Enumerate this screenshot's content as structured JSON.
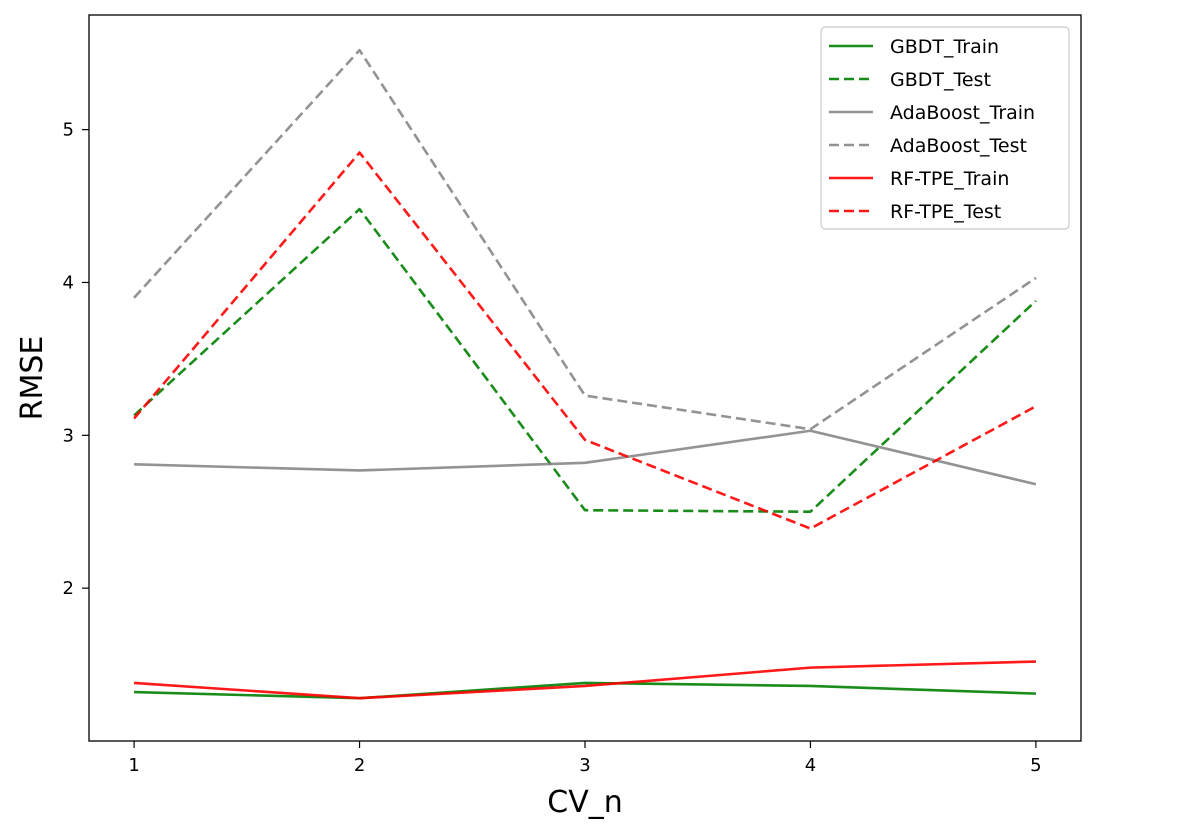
{
  "chart_data": {
    "type": "line",
    "title": "",
    "xlabel": "CV_n",
    "ylabel": "RMSE",
    "x": [
      1,
      2,
      3,
      4,
      5
    ],
    "xticks": [
      "1",
      "2",
      "3",
      "4",
      "5"
    ],
    "yticks": [
      "2",
      "3",
      "4",
      "5"
    ],
    "ylim": [
      1.0,
      5.75
    ],
    "xlim": [
      0.8,
      5.2
    ],
    "grid": false,
    "legend_position": "top-right",
    "series": [
      {
        "name": "GBDT_Train",
        "color": "#008000",
        "dash": "solid",
        "values": [
          1.32,
          1.28,
          1.38,
          1.36,
          1.31
        ]
      },
      {
        "name": "GBDT_Test",
        "color": "#008000",
        "dash": "dashed",
        "values": [
          3.13,
          4.48,
          2.51,
          2.5,
          3.88
        ]
      },
      {
        "name": "AdaBoost_Train",
        "color": "#808080",
        "dash": "solid",
        "values": [
          2.81,
          2.77,
          2.82,
          3.03,
          2.68
        ]
      },
      {
        "name": "AdaBoost_Test",
        "color": "#808080",
        "dash": "dashed",
        "values": [
          3.9,
          5.52,
          3.26,
          3.04,
          4.03
        ]
      },
      {
        "name": "RF-TPE_Train",
        "color": "#ff0000",
        "dash": "solid",
        "values": [
          1.38,
          1.28,
          1.36,
          1.48,
          1.52
        ]
      },
      {
        "name": "RF-TPE_Test",
        "color": "#ff0000",
        "dash": "dashed",
        "values": [
          3.11,
          4.85,
          2.97,
          2.39,
          3.19
        ]
      }
    ]
  }
}
